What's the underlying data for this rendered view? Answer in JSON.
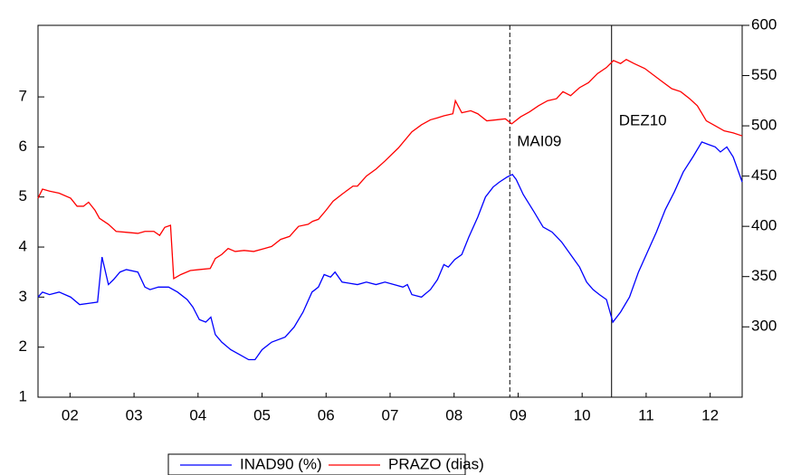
{
  "chart_data": {
    "type": "line",
    "xlim": [
      2002,
      2013
    ],
    "xticks": [
      {
        "value": 2002.5,
        "label": "02"
      },
      {
        "value": 2003.5,
        "label": "03"
      },
      {
        "value": 2004.5,
        "label": "04"
      },
      {
        "value": 2005.5,
        "label": "05"
      },
      {
        "value": 2006.5,
        "label": "06"
      },
      {
        "value": 2007.5,
        "label": "07"
      },
      {
        "value": 2008.5,
        "label": "08"
      },
      {
        "value": 2009.5,
        "label": "09"
      },
      {
        "value": 2010.5,
        "label": "10"
      },
      {
        "value": 2011.5,
        "label": "11"
      },
      {
        "value": 2012.5,
        "label": "12"
      }
    ],
    "ylim": [
      1,
      8.43
    ],
    "yticks": [
      1,
      2,
      3,
      4,
      5,
      6,
      7
    ],
    "y2lim": [
      230,
      600
    ],
    "y2ticks": [
      300,
      350,
      400,
      450,
      500,
      550,
      600
    ],
    "legend": "bottom",
    "annotations": [
      {
        "text": "MAI09",
        "x": 2009.37,
        "line": "dashed"
      },
      {
        "text": "DEZ10",
        "x": 2010.96,
        "line": "solid"
      }
    ],
    "series": [
      {
        "name": "INAD90 (%)",
        "color": "#0000ff",
        "axis": "y",
        "x": [
          2002.0,
          2002.07,
          2002.18,
          2002.33,
          2002.51,
          2002.65,
          2002.82,
          2002.93,
          2003.0,
          2003.1,
          2003.18,
          2003.28,
          2003.38,
          2003.56,
          2003.67,
          2003.75,
          2003.88,
          2004.04,
          2004.18,
          2004.33,
          2004.42,
          2004.52,
          2004.62,
          2004.7,
          2004.77,
          2004.87,
          2005.01,
          2005.15,
          2005.29,
          2005.39,
          2005.5,
          2005.65,
          2005.86,
          2006.0,
          2006.14,
          2006.28,
          2006.38,
          2006.47,
          2006.57,
          2006.64,
          2006.75,
          2006.99,
          2007.13,
          2007.28,
          2007.42,
          2007.56,
          2007.7,
          2007.77,
          2007.84,
          2007.99,
          2008.13,
          2008.24,
          2008.34,
          2008.41,
          2008.51,
          2008.62,
          2008.73,
          2008.87,
          2008.99,
          2009.11,
          2009.21,
          2009.33,
          2009.41,
          2009.47,
          2009.58,
          2009.75,
          2009.89,
          2010.03,
          2010.18,
          2010.32,
          2010.46,
          2010.57,
          2010.67,
          2010.77,
          2010.88,
          2010.98,
          2011.1,
          2011.24,
          2011.38,
          2011.52,
          2011.66,
          2011.8,
          2011.94,
          2012.08,
          2012.23,
          2012.37,
          2012.47,
          2012.58,
          2012.66,
          2012.76,
          2012.86,
          2013.0
        ],
        "values": [
          3.0,
          3.1,
          3.05,
          3.1,
          3.0,
          2.85,
          2.88,
          2.9,
          3.8,
          3.25,
          3.35,
          3.5,
          3.55,
          3.5,
          3.2,
          3.15,
          3.2,
          3.2,
          3.1,
          2.95,
          2.8,
          2.55,
          2.5,
          2.6,
          2.25,
          2.1,
          1.95,
          1.85,
          1.75,
          1.75,
          1.95,
          2.1,
          2.2,
          2.4,
          2.7,
          3.1,
          3.2,
          3.45,
          3.4,
          3.5,
          3.3,
          3.25,
          3.3,
          3.25,
          3.3,
          3.25,
          3.2,
          3.25,
          3.05,
          3.0,
          3.15,
          3.35,
          3.65,
          3.6,
          3.75,
          3.85,
          4.2,
          4.6,
          5.0,
          5.2,
          5.3,
          5.4,
          5.45,
          5.35,
          5.05,
          4.7,
          4.4,
          4.3,
          4.1,
          3.85,
          3.6,
          3.3,
          3.15,
          3.05,
          2.95,
          2.5,
          2.7,
          3.0,
          3.5,
          3.9,
          4.3,
          4.75,
          5.1,
          5.5,
          5.8,
          6.1,
          6.05,
          6.0,
          5.9,
          6.0,
          5.8,
          5.3
        ]
      },
      {
        "name": "PRAZO (dias)",
        "color": "#ff0000",
        "axis": "y2",
        "x": [
          2002.0,
          2002.07,
          2002.18,
          2002.33,
          2002.51,
          2002.61,
          2002.71,
          2002.79,
          2002.89,
          2002.96,
          2003.1,
          2003.22,
          2003.39,
          2003.56,
          2003.67,
          2003.81,
          2003.9,
          2003.98,
          2004.07,
          2004.12,
          2004.23,
          2004.38,
          2004.52,
          2004.69,
          2004.77,
          2004.87,
          2004.97,
          2005.08,
          2005.22,
          2005.37,
          2005.54,
          2005.65,
          2005.79,
          2005.93,
          2006.07,
          2006.22,
          2006.29,
          2006.38,
          2006.5,
          2006.61,
          2006.75,
          2006.92,
          2006.99,
          2007.13,
          2007.28,
          2007.42,
          2007.63,
          2007.84,
          2007.99,
          2008.13,
          2008.24,
          2008.34,
          2008.48,
          2008.52,
          2008.62,
          2008.76,
          2008.87,
          2009.01,
          2009.16,
          2009.3,
          2009.4,
          2009.54,
          2009.68,
          2009.82,
          2009.96,
          2010.1,
          2010.2,
          2010.32,
          2010.46,
          2010.6,
          2010.74,
          2010.88,
          2010.99,
          2011.1,
          2011.19,
          2011.31,
          2011.48,
          2011.73,
          2011.9,
          2012.04,
          2012.18,
          2012.3,
          2012.44,
          2012.58,
          2012.72,
          2012.86,
          2013.0
        ],
        "values": [
          428,
          437,
          435,
          433,
          428,
          420,
          420,
          424,
          416,
          408,
          402,
          395,
          394,
          393,
          395,
          395,
          391,
          399,
          401,
          348,
          352,
          356,
          357,
          358,
          368,
          372,
          378,
          375,
          376,
          375,
          378,
          380,
          387,
          390,
          400,
          402,
          405,
          407,
          416,
          425,
          432,
          440,
          440,
          450,
          457,
          465,
          478,
          494,
          501,
          506,
          508,
          510,
          512,
          525,
          513,
          515,
          512,
          505,
          506,
          507,
          502,
          509,
          514,
          520,
          525,
          527,
          534,
          530,
          538,
          543,
          552,
          558,
          565,
          562,
          566,
          562,
          557,
          545,
          537,
          534,
          527,
          520,
          505,
          500,
          495,
          493,
          490
        ]
      }
    ]
  }
}
